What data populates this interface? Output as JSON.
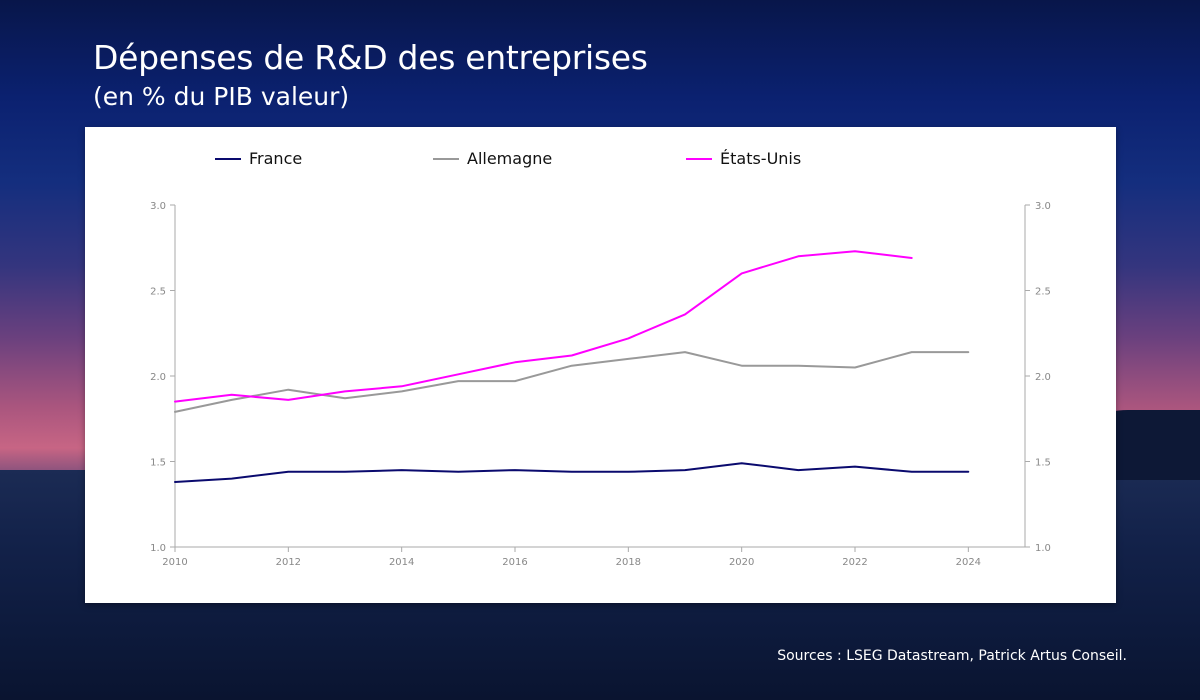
{
  "header": {
    "title": "Dépenses de R&D des entreprises",
    "subtitle": "(en % du PIB valeur)"
  },
  "footer": {
    "source": "Sources : LSEG Datastream, Patrick Artus Conseil."
  },
  "chart_data": {
    "type": "line",
    "title": "Dépenses de R&D des entreprises",
    "subtitle": "(en % du PIB valeur)",
    "xlabel": "",
    "ylabel": "",
    "xlim": [
      2010,
      2025
    ],
    "ylim": [
      1.0,
      3.0
    ],
    "x_ticks": [
      "2010",
      "2012",
      "2014",
      "2016",
      "2018",
      "2020",
      "2022",
      "2024"
    ],
    "y_ticks": [
      "1.0",
      "1.5",
      "2.0",
      "2.5",
      "3.0"
    ],
    "y2_ticks": [
      "1.0",
      "1.5",
      "2.0",
      "2.5",
      "3.0"
    ],
    "grid": false,
    "legend_position": "top",
    "series": [
      {
        "name": "France",
        "color": "#0a0a6e",
        "x": [
          2010,
          2011,
          2012,
          2013,
          2014,
          2015,
          2016,
          2017,
          2018,
          2019,
          2020,
          2021,
          2022,
          2023,
          2024
        ],
        "values": [
          1.38,
          1.4,
          1.44,
          1.44,
          1.45,
          1.44,
          1.45,
          1.44,
          1.44,
          1.45,
          1.49,
          1.45,
          1.47,
          1.44,
          1.44
        ]
      },
      {
        "name": "Allemagne",
        "color": "#999999",
        "x": [
          2010,
          2011,
          2012,
          2013,
          2014,
          2015,
          2016,
          2017,
          2018,
          2019,
          2020,
          2021,
          2022,
          2023,
          2024
        ],
        "values": [
          1.79,
          1.86,
          1.92,
          1.87,
          1.91,
          1.97,
          1.97,
          2.06,
          2.1,
          2.14,
          2.06,
          2.06,
          2.05,
          2.14,
          2.14
        ]
      },
      {
        "name": "États-Unis",
        "color": "#ff00ff",
        "x": [
          2010,
          2011,
          2012,
          2013,
          2014,
          2015,
          2016,
          2017,
          2018,
          2019,
          2020,
          2021,
          2022,
          2023
        ],
        "values": [
          1.85,
          1.89,
          1.86,
          1.91,
          1.94,
          2.01,
          2.08,
          2.12,
          2.22,
          2.36,
          2.6,
          2.7,
          2.73,
          2.69
        ]
      }
    ]
  }
}
